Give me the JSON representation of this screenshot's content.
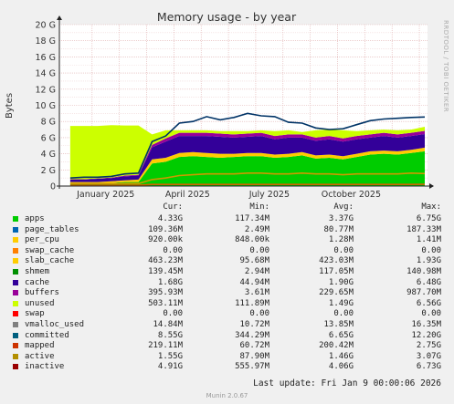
{
  "chart_data": {
    "type": "area",
    "title": "Memory usage - by year",
    "ylabel": "Bytes",
    "ylim": [
      0,
      20
    ],
    "yunit": "G",
    "y_ticks": [
      "0",
      "2 G",
      "4 G",
      "6 G",
      "8 G",
      "10 G",
      "12 G",
      "14 G",
      "16 G",
      "18 G",
      "20 G"
    ],
    "x_ticks": [
      "January 2025",
      "April 2025",
      "July 2025",
      "October 2025"
    ],
    "side_label": "RRDTOOL / TOBI OETIKER",
    "grid": true,
    "x_months": [
      0,
      0.5,
      1,
      1.5,
      2,
      2.5,
      3,
      3.5,
      4,
      4.5,
      5,
      5.5,
      6,
      6.5,
      7,
      7.5,
      8,
      8.5,
      9,
      9.5,
      10,
      10.5,
      11,
      11.5,
      12,
      12.5,
      13
    ],
    "series": [
      {
        "name": "apps",
        "color": "#00cc00",
        "values": [
          0.3,
          0.3,
          0.3,
          0.4,
          0.5,
          0.5,
          2.8,
          3.0,
          3.6,
          3.7,
          3.6,
          3.5,
          3.6,
          3.7,
          3.7,
          3.5,
          3.6,
          3.8,
          3.4,
          3.5,
          3.3,
          3.6,
          3.9,
          4.0,
          3.9,
          4.1,
          4.3
        ]
      },
      {
        "name": "slab_cache",
        "color": "#ffcc00",
        "values": [
          0.2,
          0.2,
          0.2,
          0.2,
          0.2,
          0.3,
          0.5,
          0.5,
          0.5,
          0.5,
          0.5,
          0.5,
          0.4,
          0.4,
          0.4,
          0.4,
          0.4,
          0.4,
          0.4,
          0.4,
          0.4,
          0.4,
          0.4,
          0.4,
          0.4,
          0.4,
          0.46
        ]
      },
      {
        "name": "cache",
        "color": "#330099",
        "values": [
          0.3,
          0.3,
          0.4,
          0.4,
          0.5,
          0.5,
          1.5,
          2.0,
          2.1,
          2.0,
          2.1,
          2.1,
          2.0,
          2.0,
          2.1,
          1.9,
          2.0,
          1.8,
          1.8,
          1.9,
          1.8,
          1.8,
          1.7,
          1.8,
          1.7,
          1.7,
          1.68
        ]
      },
      {
        "name": "buffers",
        "color": "#990099",
        "values": [
          0.05,
          0.05,
          0.05,
          0.05,
          0.1,
          0.1,
          0.3,
          0.4,
          0.4,
          0.4,
          0.4,
          0.4,
          0.4,
          0.4,
          0.4,
          0.4,
          0.4,
          0.4,
          0.4,
          0.4,
          0.4,
          0.4,
          0.4,
          0.4,
          0.4,
          0.4,
          0.4
        ]
      },
      {
        "name": "unused",
        "color": "#ccff00",
        "values": [
          6.6,
          6.6,
          6.5,
          6.5,
          6.2,
          6.1,
          1.3,
          1.0,
          0.3,
          0.3,
          0.3,
          0.3,
          0.4,
          0.3,
          0.3,
          0.6,
          0.5,
          0.3,
          0.9,
          0.8,
          1.0,
          0.6,
          0.5,
          0.4,
          0.5,
          0.4,
          0.5
        ]
      }
    ],
    "line_series": [
      {
        "name": "committed",
        "color": "#003366",
        "values": [
          1.0,
          1.1,
          1.1,
          1.2,
          1.5,
          1.6,
          5.5,
          6.2,
          7.8,
          8.0,
          8.6,
          8.2,
          8.5,
          9.0,
          8.7,
          8.6,
          7.9,
          7.8,
          7.2,
          7.0,
          7.1,
          7.6,
          8.1,
          8.3,
          8.4,
          8.5,
          8.55
        ]
      },
      {
        "name": "active",
        "color": "#cc9900",
        "values": [
          0.3,
          0.3,
          0.3,
          0.3,
          0.3,
          0.3,
          0.8,
          1.0,
          1.3,
          1.4,
          1.5,
          1.5,
          1.5,
          1.6,
          1.6,
          1.5,
          1.5,
          1.6,
          1.5,
          1.5,
          1.4,
          1.5,
          1.5,
          1.5,
          1.5,
          1.6,
          1.55
        ]
      },
      {
        "name": "mapped",
        "color": "#cc6600",
        "values": [
          0.1,
          0.1,
          0.1,
          0.1,
          0.1,
          0.1,
          0.2,
          0.2,
          0.2,
          0.2,
          0.2,
          0.2,
          0.2,
          0.2,
          0.2,
          0.2,
          0.2,
          0.2,
          0.2,
          0.2,
          0.2,
          0.2,
          0.2,
          0.2,
          0.2,
          0.2,
          0.22
        ]
      }
    ]
  },
  "legend": {
    "headers": [
      "Cur:",
      "Min:",
      "Avg:",
      "Max:"
    ],
    "rows": [
      {
        "name": "apps",
        "color": "#00cc00",
        "cur": "4.33G",
        "min": "117.34M",
        "avg": "3.37G",
        "max": "6.75G"
      },
      {
        "name": "page_tables",
        "color": "#0066b3",
        "cur": "109.36M",
        "min": "2.49M",
        "avg": "80.77M",
        "max": "187.33M"
      },
      {
        "name": "per_cpu",
        "color": "#ffcc00",
        "cur": "920.00k",
        "min": "848.00k",
        "avg": "1.28M",
        "max": "1.41M"
      },
      {
        "name": "swap_cache",
        "color": "#ff8000",
        "cur": "0.00",
        "min": "0.00",
        "avg": "0.00",
        "max": "0.00"
      },
      {
        "name": "slab_cache",
        "color": "#ffcc00",
        "cur": "463.23M",
        "min": "95.68M",
        "avg": "423.03M",
        "max": "1.93G"
      },
      {
        "name": "shmem",
        "color": "#008f00",
        "cur": "139.45M",
        "min": "2.94M",
        "avg": "117.05M",
        "max": "140.98M"
      },
      {
        "name": "cache",
        "color": "#330099",
        "cur": "1.68G",
        "min": "44.94M",
        "avg": "1.90G",
        "max": "6.48G"
      },
      {
        "name": "buffers",
        "color": "#990099",
        "cur": "395.93M",
        "min": "3.61M",
        "avg": "229.65M",
        "max": "987.70M"
      },
      {
        "name": "unused",
        "color": "#ccff00",
        "cur": "503.11M",
        "min": "111.89M",
        "avg": "1.49G",
        "max": "6.56G"
      },
      {
        "name": "swap",
        "color": "#ff0000",
        "cur": "0.00",
        "min": "0.00",
        "avg": "0.00",
        "max": "0.00"
      },
      {
        "name": "vmalloc_used",
        "color": "#808080",
        "cur": "14.84M",
        "min": "10.72M",
        "avg": "13.85M",
        "max": "16.35M"
      },
      {
        "name": "committed",
        "color": "#005f7f",
        "cur": "8.55G",
        "min": "344.29M",
        "avg": "6.65G",
        "max": "12.20G"
      },
      {
        "name": "mapped",
        "color": "#cc3300",
        "cur": "219.11M",
        "min": "60.72M",
        "avg": "200.42M",
        "max": "2.75G"
      },
      {
        "name": "active",
        "color": "#b38f00",
        "cur": "1.55G",
        "min": "87.90M",
        "avg": "1.46G",
        "max": "3.07G"
      },
      {
        "name": "inactive",
        "color": "#990000",
        "cur": "4.91G",
        "min": "555.97M",
        "avg": "4.06G",
        "max": "6.73G"
      }
    ]
  },
  "footer": {
    "last_update": "Last update: Fri Jan  9 00:00:06 2026",
    "munin": "Munin 2.0.67"
  }
}
